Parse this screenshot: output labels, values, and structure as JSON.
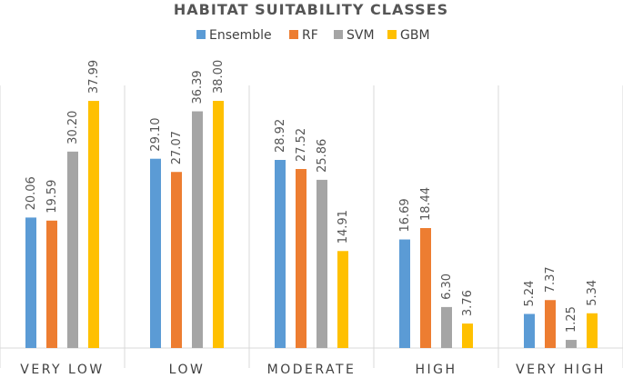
{
  "chart_data": {
    "type": "bar",
    "title": "HABITAT SUITABILITY CLASSES",
    "categories": [
      "VERY LOW",
      "LOW",
      "MODERATE",
      "HIGH",
      "VERY HIGH"
    ],
    "series": [
      {
        "name": "Ensemble",
        "color": "#5b9bd5",
        "values": [
          20.06,
          29.1,
          28.92,
          16.69,
          5.24
        ],
        "labels": [
          "20.06",
          "29.10",
          "28.92",
          "16.69",
          "5.24"
        ]
      },
      {
        "name": "RF",
        "color": "#ed7d31",
        "values": [
          19.59,
          27.07,
          27.52,
          18.44,
          7.37
        ],
        "labels": [
          "19.59",
          "27.07",
          "27.52",
          "18.44",
          "7.37"
        ]
      },
      {
        "name": "SVM",
        "color": "#a5a5a5",
        "values": [
          30.2,
          36.39,
          25.86,
          6.3,
          1.25
        ],
        "labels": [
          "30.20",
          "36.39",
          "25.86",
          "6.30",
          "1.25"
        ]
      },
      {
        "name": "GBM",
        "color": "#ffc000",
        "values": [
          37.99,
          38.0,
          14.91,
          3.76,
          5.34
        ],
        "labels": [
          "37.99",
          "38.00",
          "14.91",
          "3.76",
          "5.34"
        ]
      }
    ],
    "ylim": [
      0,
      40
    ],
    "xlabel": "",
    "ylabel": "",
    "legend": "top",
    "grid": false
  }
}
